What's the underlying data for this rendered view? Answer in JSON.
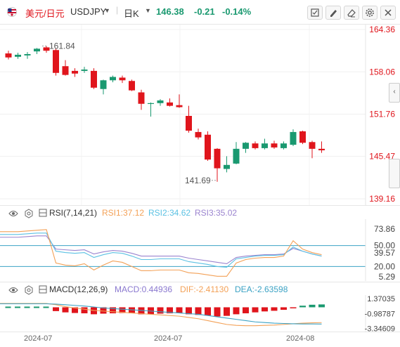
{
  "header": {
    "pair_cn": "美元/日元",
    "symbol": "USDJPY",
    "timeframe": "日K",
    "last_price": "146.38",
    "change": "-0.21",
    "change_pct": "-0.14%",
    "icons": [
      "checkbox-icon",
      "draw-icon",
      "eraser-icon",
      "settings-icon",
      "close-icon"
    ]
  },
  "colors": {
    "up": "#1a9970",
    "down": "#e0151c",
    "rsi1": "#f3a157",
    "rsi2": "#5bc1e3",
    "rsi3": "#9b84cf",
    "macd_label": "#8a78cf",
    "dif": "#f3a157",
    "dea": "#3ba2c4",
    "line50": "#3ba2c4"
  },
  "price_axis": {
    "ticks": [
      "164.36",
      "158.06",
      "151.76",
      "145.47",
      "139.16"
    ]
  },
  "annotations": {
    "high": "161.84",
    "low": "141.69"
  },
  "rsi": {
    "name": "RSI(7,14,21)",
    "rsi1": "RSI1:37.12",
    "rsi2": "RSI2:34.62",
    "rsi3": "RSI3:35.02",
    "ticks": [
      "73.86",
      "50.00",
      "39.57",
      "20.00",
      "5.29"
    ]
  },
  "macd": {
    "name": "MACD(12,26,9)",
    "macd": "MACD:0.44936",
    "dif": "DIF:-2.41130",
    "dea": "DEA:-2.63598",
    "ticks": [
      "1.37035",
      "-0.98787",
      "-3.34609"
    ]
  },
  "dates": [
    "2024-07",
    "2024-07",
    "2024-08"
  ],
  "chart_data": {
    "type": "candlestick",
    "ylim": [
      139.16,
      164.36
    ],
    "candles": [
      {
        "o": 160.8,
        "h": 161.2,
        "l": 159.9,
        "c": 160.2
      },
      {
        "o": 160.3,
        "h": 160.9,
        "l": 160.0,
        "c": 160.6
      },
      {
        "o": 160.5,
        "h": 161.0,
        "l": 160.0,
        "c": 160.7
      },
      {
        "o": 161.1,
        "h": 161.6,
        "l": 160.7,
        "c": 161.5
      },
      {
        "o": 161.7,
        "h": 161.9,
        "l": 160.9,
        "c": 161.2
      },
      {
        "o": 161.3,
        "h": 161.5,
        "l": 157.5,
        "c": 157.9
      },
      {
        "o": 158.9,
        "h": 159.8,
        "l": 157.5,
        "c": 157.6
      },
      {
        "o": 158.2,
        "h": 158.6,
        "l": 157.3,
        "c": 157.8
      },
      {
        "o": 158.2,
        "h": 158.8,
        "l": 157.9,
        "c": 158.4
      },
      {
        "o": 158.2,
        "h": 158.6,
        "l": 155.5,
        "c": 155.7
      },
      {
        "o": 155.5,
        "h": 156.9,
        "l": 154.7,
        "c": 156.8
      },
      {
        "o": 156.8,
        "h": 157.5,
        "l": 156.5,
        "c": 157.3
      },
      {
        "o": 157.2,
        "h": 157.5,
        "l": 156.4,
        "c": 156.8
      },
      {
        "o": 156.7,
        "h": 156.9,
        "l": 155.2,
        "c": 155.3
      },
      {
        "o": 155.0,
        "h": 155.4,
        "l": 152.4,
        "c": 153.3
      },
      {
        "o": 153.4,
        "h": 153.5,
        "l": 151.4,
        "c": 153.4
      },
      {
        "o": 153.4,
        "h": 154.0,
        "l": 153.0,
        "c": 153.8
      },
      {
        "o": 153.5,
        "h": 154.1,
        "l": 152.9,
        "c": 153.0
      },
      {
        "o": 153.1,
        "h": 154.7,
        "l": 152.7,
        "c": 152.8
      },
      {
        "o": 151.5,
        "h": 153.0,
        "l": 149.0,
        "c": 149.3
      },
      {
        "o": 149.1,
        "h": 149.6,
        "l": 148.0,
        "c": 148.3
      },
      {
        "o": 148.7,
        "h": 149.2,
        "l": 144.8,
        "c": 145.0
      },
      {
        "o": 146.6,
        "h": 146.7,
        "l": 141.69,
        "c": 143.7
      },
      {
        "o": 143.6,
        "h": 145.5,
        "l": 143.1,
        "c": 144.2
      },
      {
        "o": 144.4,
        "h": 147.6,
        "l": 144.3,
        "c": 146.6
      },
      {
        "o": 146.6,
        "h": 147.6,
        "l": 146.0,
        "c": 147.5
      },
      {
        "o": 147.4,
        "h": 147.7,
        "l": 146.5,
        "c": 146.7
      },
      {
        "o": 146.7,
        "h": 148.1,
        "l": 146.5,
        "c": 147.4
      },
      {
        "o": 147.4,
        "h": 147.8,
        "l": 146.6,
        "c": 146.8
      },
      {
        "o": 146.7,
        "h": 147.7,
        "l": 146.5,
        "c": 147.4
      },
      {
        "o": 147.2,
        "h": 149.5,
        "l": 147.0,
        "c": 149.1
      },
      {
        "o": 149.2,
        "h": 149.3,
        "l": 147.3,
        "c": 147.5
      },
      {
        "o": 147.6,
        "h": 147.8,
        "l": 145.2,
        "c": 146.6
      },
      {
        "o": 146.6,
        "h": 147.7,
        "l": 146.0,
        "c": 146.38
      }
    ],
    "rsi_ylim": [
      5.29,
      73.86
    ],
    "rsi1": [
      70,
      70,
      71,
      72,
      73,
      25,
      22,
      21,
      24,
      15,
      22,
      28,
      26,
      20,
      14,
      14,
      15,
      15,
      15,
      11,
      10,
      8,
      6,
      6,
      25,
      30,
      32,
      33,
      33,
      35,
      57,
      45,
      40,
      37
    ],
    "rsi2": [
      66,
      66,
      67,
      68,
      68,
      42,
      40,
      39,
      40,
      33,
      37,
      40,
      39,
      35,
      30,
      30,
      31,
      31,
      31,
      27,
      25,
      23,
      20,
      19,
      31,
      33,
      35,
      36,
      36,
      37,
      48,
      42,
      38,
      35
    ],
    "rsi3": [
      62,
      62,
      63,
      64,
      64,
      45,
      44,
      43,
      44,
      38,
      41,
      43,
      42,
      39,
      35,
      35,
      35,
      35,
      35,
      32,
      30,
      28,
      26,
      24,
      33,
      35,
      36,
      37,
      37,
      38,
      46,
      42,
      38,
      35
    ],
    "macd_ylim": [
      -3.6,
      1.6
    ],
    "macd_hist": [
      0.05,
      0.06,
      0.08,
      0.1,
      0.12,
      -0.6,
      -0.8,
      -0.9,
      -0.95,
      -1.1,
      -1.0,
      -0.95,
      -0.9,
      -0.95,
      -1.1,
      -1.1,
      -1.0,
      -0.95,
      -0.9,
      -1.1,
      -1.2,
      -1.3,
      -1.45,
      -1.35,
      -1.1,
      -0.95,
      -0.8,
      -0.65,
      -0.55,
      -0.4,
      -0.1,
      0.25,
      0.4,
      0.45
    ],
    "dif": [
      0.6,
      0.6,
      0.6,
      0.6,
      0.6,
      0.4,
      0.1,
      -0.1,
      -0.3,
      -0.5,
      -0.6,
      -0.7,
      -0.8,
      -0.9,
      -1.0,
      -1.1,
      -1.2,
      -1.3,
      -1.4,
      -1.6,
      -1.8,
      -2.1,
      -2.4,
      -2.7,
      -2.85,
      -2.9,
      -2.9,
      -2.85,
      -2.8,
      -2.7,
      -2.6,
      -2.5,
      -2.45,
      -2.41
    ],
    "dea": [
      0.55,
      0.55,
      0.55,
      0.55,
      0.55,
      0.5,
      0.4,
      0.3,
      0.2,
      0.05,
      -0.1,
      -0.2,
      -0.3,
      -0.4,
      -0.5,
      -0.6,
      -0.7,
      -0.8,
      -0.9,
      -1.0,
      -1.1,
      -1.3,
      -1.5,
      -1.7,
      -1.9,
      -2.1,
      -2.3,
      -2.4,
      -2.5,
      -2.55,
      -2.6,
      -2.62,
      -2.63,
      -2.64
    ]
  }
}
